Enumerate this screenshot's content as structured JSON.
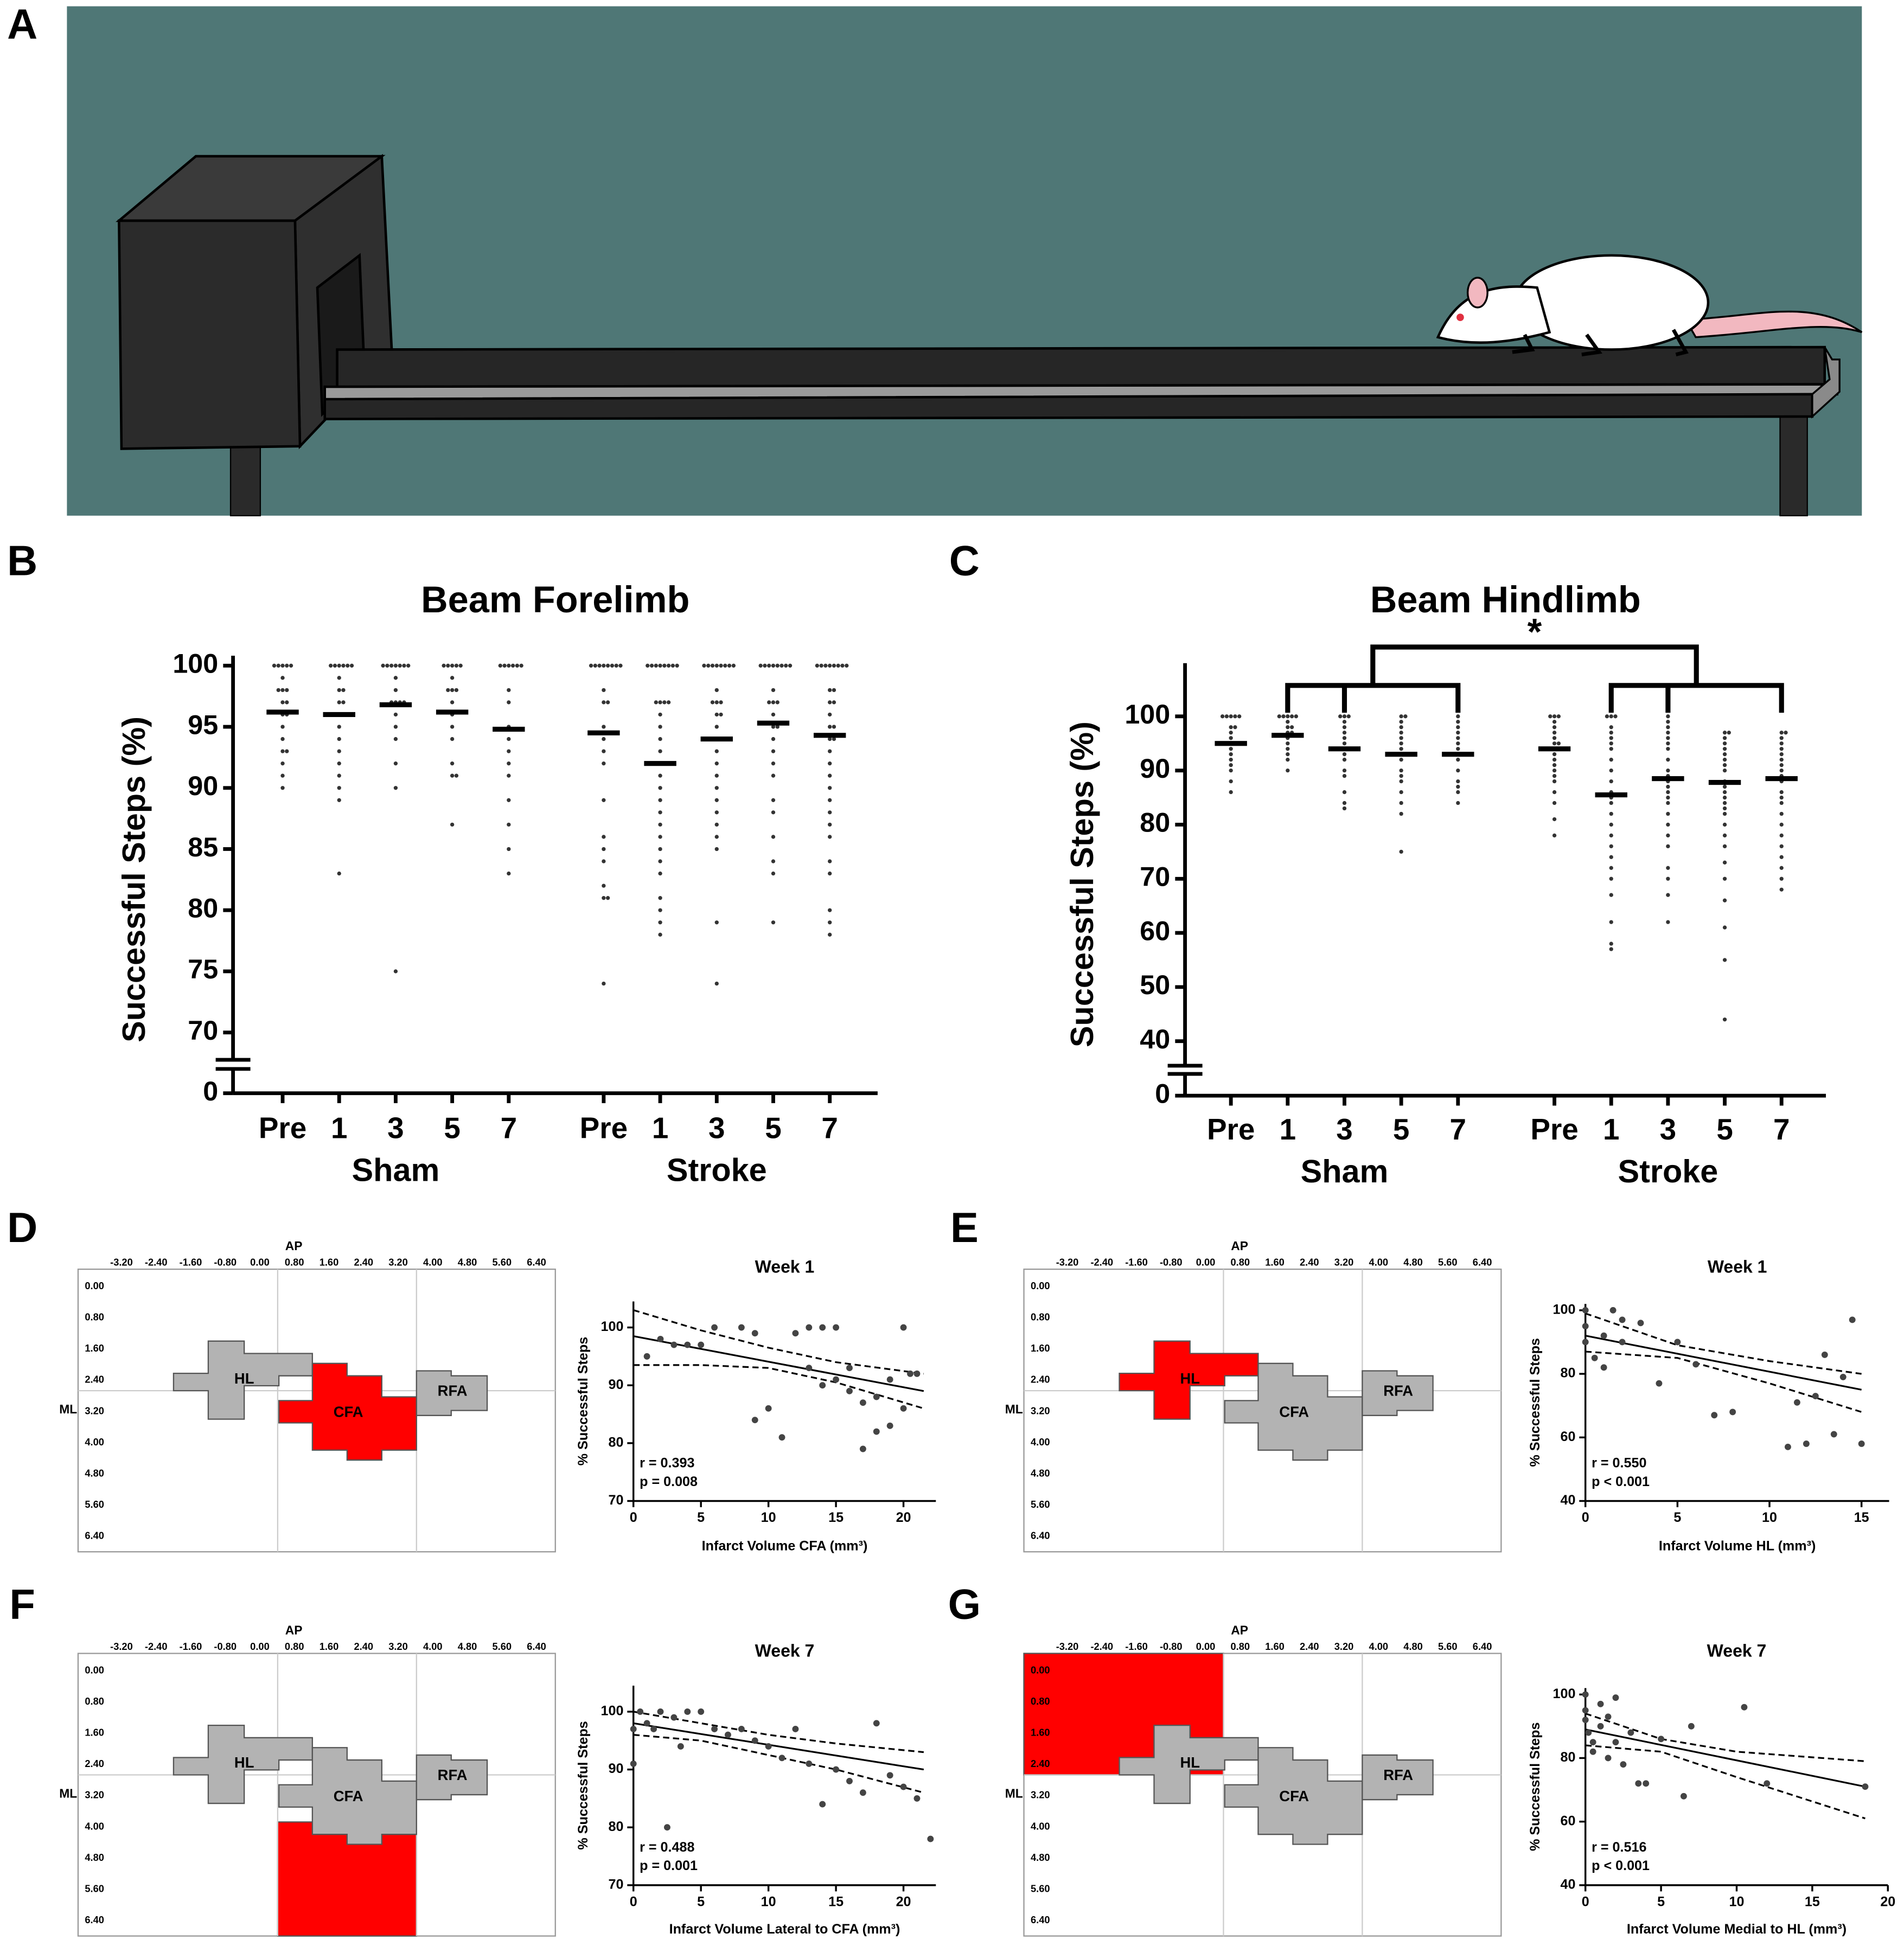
{
  "panel_labels": [
    "A",
    "B",
    "C",
    "D",
    "E",
    "F",
    "G"
  ],
  "chart_data": [
    {
      "type": "dot",
      "title": "Beam Forelimb",
      "y_label": "Successful Steps (%)",
      "categories": [
        "Pre",
        "1",
        "3",
        "5",
        "7",
        "Pre",
        "1",
        "3",
        "5",
        "7"
      ],
      "groups": [
        "Sham",
        "Stroke"
      ],
      "values": [
        [
          100,
          100,
          100,
          100,
          100,
          99,
          98,
          98,
          98,
          97,
          97,
          96,
          96,
          95,
          94,
          93,
          93,
          92,
          91,
          90
        ],
        [
          100,
          100,
          100,
          100,
          100,
          100,
          99,
          98,
          98,
          97,
          97,
          96,
          95,
          94,
          93,
          92,
          91,
          90,
          89,
          83
        ],
        [
          100,
          100,
          100,
          100,
          100,
          100,
          100,
          99,
          98,
          97,
          97,
          97,
          97,
          96,
          95,
          94,
          92,
          90,
          75
        ],
        [
          100,
          100,
          100,
          100,
          100,
          99,
          98,
          98,
          98,
          97,
          96,
          95,
          94,
          92,
          91,
          91,
          87
        ],
        [
          100,
          100,
          100,
          100,
          100,
          100,
          98,
          97,
          95,
          94,
          93,
          92,
          91,
          89,
          87,
          85,
          83
        ],
        [
          100,
          100,
          100,
          100,
          100,
          100,
          100,
          100,
          98,
          97,
          97,
          95,
          94,
          93,
          92,
          89,
          86,
          85,
          84,
          82,
          81,
          81,
          74
        ],
        [
          100,
          100,
          100,
          100,
          100,
          100,
          100,
          100,
          97,
          97,
          97,
          97,
          96,
          95,
          94,
          93,
          92,
          91,
          90,
          89,
          88,
          87,
          86,
          85,
          84,
          83,
          81,
          80,
          79,
          78
        ],
        [
          100,
          100,
          100,
          100,
          100,
          100,
          100,
          100,
          98,
          97,
          97,
          97,
          96,
          96,
          95,
          94,
          93,
          92,
          91,
          90,
          89,
          88,
          87,
          86,
          85,
          79,
          74
        ],
        [
          100,
          100,
          100,
          100,
          100,
          100,
          100,
          100,
          98,
          97,
          97,
          97,
          96,
          95,
          95,
          94,
          93,
          92,
          91,
          89,
          88,
          86,
          84,
          83,
          79
        ],
        [
          100,
          100,
          100,
          100,
          100,
          100,
          100,
          100,
          98,
          98,
          97,
          97,
          96,
          95,
          95,
          94,
          94,
          93,
          92,
          91,
          90,
          89,
          88,
          87,
          86,
          84,
          83,
          80,
          79,
          78
        ]
      ],
      "means": [
        96.2,
        96,
        96.8,
        96.2,
        94.8,
        94.5,
        92,
        94,
        95.3,
        94.3
      ],
      "color": "#333333",
      "ylim": [
        0,
        100
      ],
      "yticks": [
        0,
        70,
        75,
        80,
        85,
        90,
        95,
        100
      ],
      "y_break": true
    },
    {
      "type": "dot",
      "title": "Beam Hindlimb",
      "y_label": "Successful Steps (%)",
      "annotation": "*",
      "categories": [
        "Pre",
        "1",
        "3",
        "5",
        "7",
        "Pre",
        "1",
        "3",
        "5",
        "7"
      ],
      "groups": [
        "Sham",
        "Stroke"
      ],
      "values": [
        [
          100,
          100,
          100,
          100,
          100,
          98,
          98,
          97,
          96,
          95,
          94,
          93,
          92,
          91,
          90,
          88,
          86
        ],
        [
          100,
          100,
          100,
          100,
          100,
          99,
          98,
          98,
          97,
          97,
          96,
          95,
          94,
          93,
          92,
          90
        ],
        [
          100,
          100,
          100,
          99,
          98,
          97,
          96,
          95,
          94,
          93,
          92,
          90,
          89,
          86,
          84,
          83
        ],
        [
          100,
          100,
          99,
          98,
          97,
          96,
          95,
          94,
          92,
          90,
          89,
          88,
          86,
          84,
          82,
          75
        ],
        [
          100,
          99,
          98,
          97,
          96,
          95,
          94,
          93,
          92,
          90,
          88,
          87,
          86,
          84
        ],
        [
          100,
          100,
          100,
          99,
          98,
          97,
          96,
          95,
          95,
          94,
          93,
          92,
          91,
          90,
          89,
          88,
          86,
          84,
          81,
          78
        ],
        [
          100,
          100,
          100,
          98,
          97,
          96,
          95,
          94,
          92,
          90,
          88,
          86,
          85,
          84,
          82,
          80,
          78,
          76,
          74,
          72,
          70,
          67,
          62,
          58,
          57
        ],
        [
          100,
          99,
          98,
          97,
          96,
          95,
          94,
          92,
          90,
          89,
          88,
          87,
          86,
          85,
          84,
          82,
          80,
          78,
          76,
          72,
          70,
          67,
          62
        ],
        [
          97,
          97,
          96,
          95,
          94,
          93,
          92,
          91,
          90,
          88,
          87,
          86,
          85,
          84,
          83,
          82,
          80,
          78,
          76,
          73,
          70,
          66,
          61,
          55,
          44
        ],
        [
          97,
          97,
          96,
          95,
          94,
          93,
          92,
          91,
          90,
          89,
          88,
          86,
          85,
          84,
          82,
          80,
          78,
          76,
          74,
          72,
          70,
          68
        ]
      ],
      "means": [
        95,
        96.5,
        94,
        93,
        93,
        94,
        85.5,
        88.5,
        87.8,
        88.5
      ],
      "color": "#333333",
      "ylim": [
        0,
        108
      ],
      "yticks": [
        0,
        40,
        50,
        60,
        70,
        80,
        90,
        100
      ],
      "y_break": true
    },
    {
      "type": "scatter",
      "title": "Week 1",
      "x_label": "Infarct Volume CFA (mm³)",
      "y_label": "% Successful Steps",
      "x": [
        1,
        2,
        3,
        4,
        5,
        6,
        8,
        9,
        9,
        10,
        11,
        12,
        13,
        13,
        14,
        14,
        15,
        15,
        16,
        16,
        17,
        17,
        18,
        18,
        19,
        19,
        20,
        20,
        20.5,
        21
      ],
      "values": [
        95,
        98,
        97,
        97,
        97,
        100,
        100,
        84,
        99,
        86,
        81,
        99,
        93,
        100,
        100,
        90,
        100,
        91,
        93,
        89,
        87,
        79,
        88,
        82,
        83,
        91,
        100,
        86,
        92,
        92
      ],
      "lines": [
        {
          "style": "solid",
          "x": [
            0,
            21.5
          ],
          "values": [
            98.5,
            89
          ]
        },
        {
          "style": "dashed",
          "x": [
            0,
            5,
            10,
            15,
            21.5
          ],
          "values": [
            103,
            99.5,
            96.5,
            94,
            92
          ]
        },
        {
          "style": "dashed",
          "x": [
            0,
            5,
            10,
            15,
            21.5
          ],
          "values": [
            93.5,
            93.5,
            93,
            90.5,
            86
          ]
        }
      ],
      "annotations": [
        "r = 0.393",
        "p = 0.008"
      ],
      "color": "#444444",
      "xlim": [
        0,
        22.4
      ],
      "ylim": [
        70,
        104.5
      ],
      "xticks": [
        0,
        5,
        10,
        15,
        20
      ],
      "yticks": [
        70,
        80,
        90,
        100
      ]
    },
    {
      "type": "scatter",
      "title": "Week 1",
      "x_label": "Infarct Volume HL (mm³)",
      "y_label": "% Successful Steps",
      "x": [
        0,
        0,
        0,
        0.5,
        1,
        1,
        1.5,
        2,
        2,
        3,
        4,
        5,
        6,
        7,
        8,
        11,
        11.5,
        12,
        12.5,
        13,
        13.5,
        14,
        14.5,
        15
      ],
      "values": [
        100,
        95,
        90,
        85,
        82,
        92,
        100,
        90,
        97,
        96,
        77,
        90,
        83,
        67,
        68,
        57,
        71,
        58,
        73,
        86,
        61,
        79,
        97,
        58
      ],
      "lines": [
        {
          "style": "solid",
          "x": [
            0,
            15
          ],
          "values": [
            92,
            75
          ]
        },
        {
          "style": "dashed",
          "x": [
            0,
            5,
            10,
            15
          ],
          "values": [
            99,
            89,
            84,
            80
          ]
        },
        {
          "style": "dashed",
          "x": [
            0,
            5,
            10,
            15
          ],
          "values": [
            87,
            85,
            77,
            68
          ]
        }
      ],
      "annotations": [
        "r = 0.550",
        "p < 0.001"
      ],
      "color": "#444444",
      "xlim": [
        0,
        16.5
      ],
      "ylim": [
        40,
        102
      ],
      "xticks": [
        0,
        5,
        10,
        15
      ],
      "yticks": [
        40,
        60,
        80,
        100
      ]
    },
    {
      "type": "scatter",
      "title": "Week 7",
      "x_label": "Infarct Volume Lateral to CFA (mm³)",
      "y_label": "% Successful Steps",
      "x": [
        0,
        0,
        0.5,
        1,
        1.5,
        2,
        2.5,
        3,
        3.5,
        4,
        5,
        6,
        7,
        8,
        9,
        10,
        11,
        12,
        13,
        14,
        15,
        16,
        17,
        18,
        19,
        20,
        21,
        22
      ],
      "values": [
        97,
        91,
        100,
        98,
        97,
        100,
        80,
        99,
        94,
        100,
        100,
        97,
        96,
        97,
        95,
        94,
        92,
        97,
        91,
        84,
        90,
        88,
        86,
        98,
        89,
        87,
        85,
        78
      ],
      "lines": [
        {
          "style": "solid",
          "x": [
            0,
            21.5
          ],
          "values": [
            98,
            90
          ]
        },
        {
          "style": "dashed",
          "x": [
            0,
            5,
            10,
            15,
            21.5
          ],
          "values": [
            100,
            98,
            96,
            94.5,
            93
          ]
        },
        {
          "style": "dashed",
          "x": [
            0,
            5,
            10,
            15,
            21.5
          ],
          "values": [
            96,
            95,
            92.5,
            90,
            86
          ]
        }
      ],
      "annotations": [
        "r = 0.488",
        "p = 0.001"
      ],
      "color": "#444444",
      "xlim": [
        0,
        22.4
      ],
      "ylim": [
        70,
        104.5
      ],
      "xticks": [
        0,
        5,
        10,
        15,
        20
      ],
      "yticks": [
        70,
        80,
        90,
        100
      ]
    },
    {
      "type": "scatter",
      "title": "Week 7",
      "x_label": "Infarct Volume Medial to HL (mm³)",
      "y_label": "% Successful Steps",
      "x": [
        0,
        0,
        0,
        0.2,
        0.5,
        0.5,
        1,
        1,
        1.5,
        1.5,
        2,
        2,
        2.5,
        3,
        3.5,
        4,
        5,
        6.5,
        7,
        10.5,
        12,
        18.5
      ],
      "values": [
        100,
        95,
        92,
        88,
        85,
        82,
        97,
        90,
        93,
        80,
        99,
        85,
        78,
        88,
        72,
        72,
        86,
        68,
        90,
        96,
        72,
        71
      ],
      "lines": [
        {
          "style": "solid",
          "x": [
            0,
            18.5
          ],
          "values": [
            89,
            71
          ]
        },
        {
          "style": "dashed",
          "x": [
            0,
            5,
            10,
            18.5
          ],
          "values": [
            94,
            86,
            82,
            79
          ]
        },
        {
          "style": "dashed",
          "x": [
            0,
            5,
            10,
            18.5
          ],
          "values": [
            84,
            82,
            74,
            61
          ]
        }
      ],
      "annotations": [
        "r = 0.516",
        "p < 0.001"
      ],
      "color": "#444444",
      "xlim": [
        0,
        20
      ],
      "ylim": [
        40,
        102
      ],
      "xticks": [
        0,
        5,
        10,
        15,
        20
      ],
      "yticks": [
        40,
        60,
        80,
        100
      ]
    }
  ],
  "maps": {
    "ap_label": "AP",
    "ml_label": "ML",
    "ap_ticks": [
      "-3.20",
      "-2.40",
      "-1.60",
      "-0.80",
      "0.00",
      "0.80",
      "1.60",
      "2.40",
      "3.20",
      "4.00",
      "4.80",
      "5.60",
      "6.40"
    ],
    "ml_ticks": [
      "0.00",
      "0.80",
      "1.60",
      "2.40",
      "3.20",
      "4.00",
      "4.80",
      "5.60",
      "6.40"
    ],
    "regions": [
      "HL",
      "CFA",
      "RFA"
    ]
  }
}
